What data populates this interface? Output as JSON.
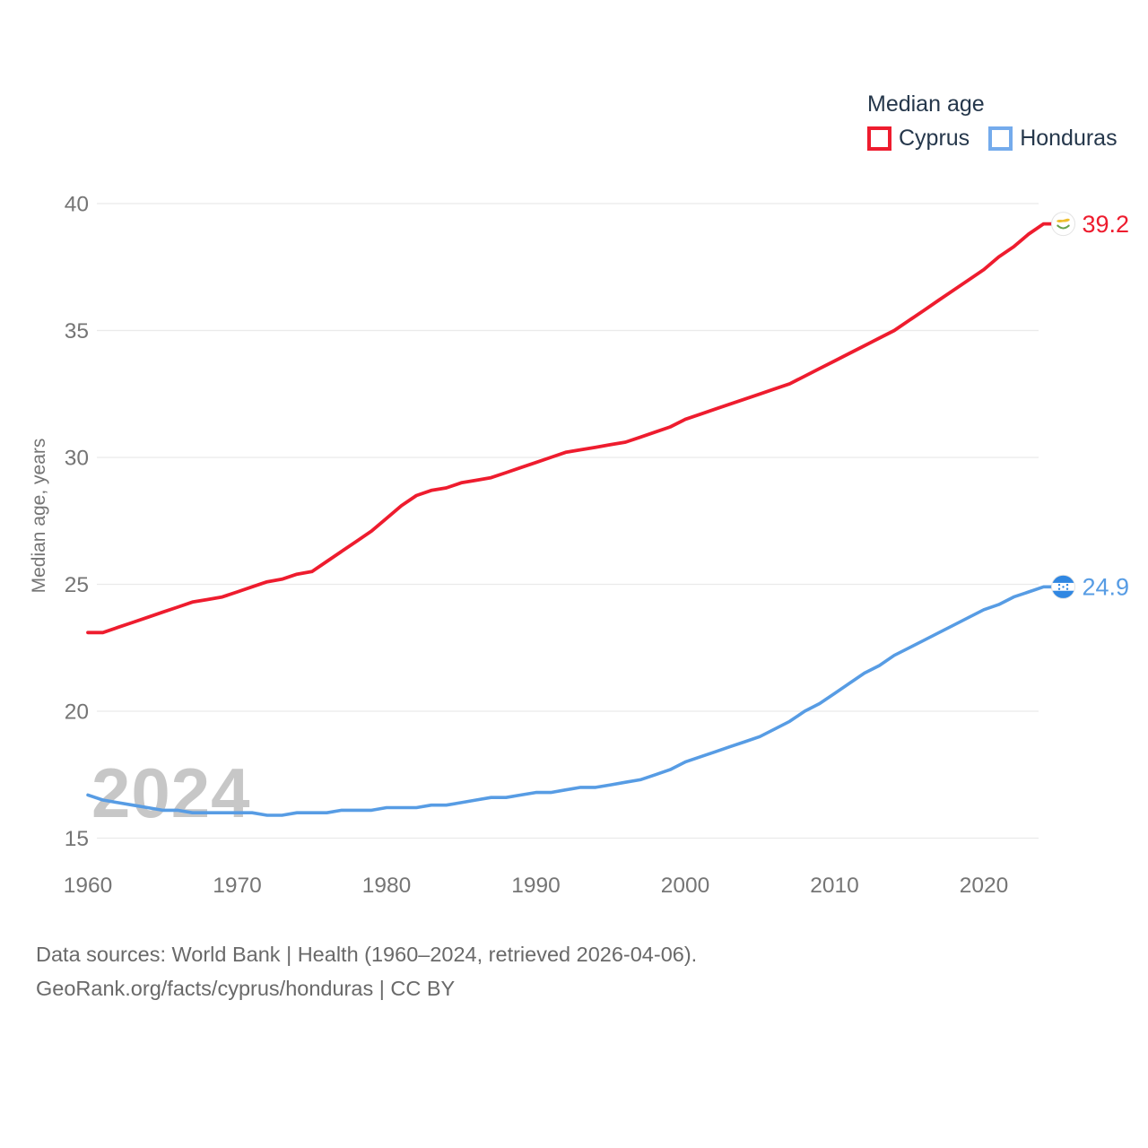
{
  "legend": {
    "title": "Median age",
    "items": [
      {
        "label": "Cyprus",
        "color": "#ee1c2e",
        "box_color": "#ee1c2e"
      },
      {
        "label": "Honduras",
        "color": "#579ce4",
        "box_color": "#74abec"
      }
    ]
  },
  "watermark": "2024",
  "footer": {
    "line1": "Data sources: World Bank | Health (1960–2024, retrieved 2026-04-06).",
    "line2": "GeoRank.org/facts/cyprus/honduras | CC BY"
  },
  "chart_data": {
    "type": "line",
    "title": "Median age",
    "ylabel": "Median age, years",
    "x": {
      "start": 1960,
      "end": 2024,
      "step": 1
    },
    "xticks": [
      1960,
      1970,
      1980,
      1990,
      2000,
      2010,
      2020
    ],
    "yticks": [
      40,
      35,
      30,
      25,
      20,
      15
    ],
    "ylim": [
      15,
      40
    ],
    "grid": "horizontal",
    "legend_position": "top-right",
    "series": [
      {
        "name": "Cyprus",
        "color": "#ee1c2e",
        "end_label": "39.2",
        "end_value": 39.2,
        "flag": "cyprus",
        "values": [
          23.1,
          23.1,
          23.3,
          23.5,
          23.7,
          23.9,
          24.1,
          24.3,
          24.4,
          24.5,
          24.7,
          24.9,
          25.1,
          25.2,
          25.4,
          25.5,
          25.9,
          26.3,
          26.7,
          27.1,
          27.6,
          28.1,
          28.5,
          28.7,
          28.8,
          29.0,
          29.1,
          29.2,
          29.4,
          29.6,
          29.8,
          30.0,
          30.2,
          30.3,
          30.4,
          30.5,
          30.6,
          30.8,
          31.0,
          31.2,
          31.5,
          31.7,
          31.9,
          32.1,
          32.3,
          32.5,
          32.7,
          32.9,
          33.2,
          33.5,
          33.8,
          34.1,
          34.4,
          34.7,
          35.0,
          35.4,
          35.8,
          36.2,
          36.6,
          37.0,
          37.4,
          37.9,
          38.3,
          38.8,
          39.2
        ]
      },
      {
        "name": "Honduras",
        "color": "#579ce4",
        "end_label": "24.9",
        "end_value": 24.9,
        "flag": "honduras",
        "values": [
          16.7,
          16.5,
          16.4,
          16.3,
          16.2,
          16.1,
          16.1,
          16.0,
          16.0,
          16.0,
          16.0,
          16.0,
          15.9,
          15.9,
          16.0,
          16.0,
          16.0,
          16.1,
          16.1,
          16.1,
          16.2,
          16.2,
          16.2,
          16.3,
          16.3,
          16.4,
          16.5,
          16.6,
          16.6,
          16.7,
          16.8,
          16.8,
          16.9,
          17.0,
          17.0,
          17.1,
          17.2,
          17.3,
          17.5,
          17.7,
          18.0,
          18.2,
          18.4,
          18.6,
          18.8,
          19.0,
          19.3,
          19.6,
          20.0,
          20.3,
          20.7,
          21.1,
          21.5,
          21.8,
          22.2,
          22.5,
          22.8,
          23.1,
          23.4,
          23.7,
          24.0,
          24.2,
          24.5,
          24.7,
          24.9
        ]
      }
    ]
  }
}
